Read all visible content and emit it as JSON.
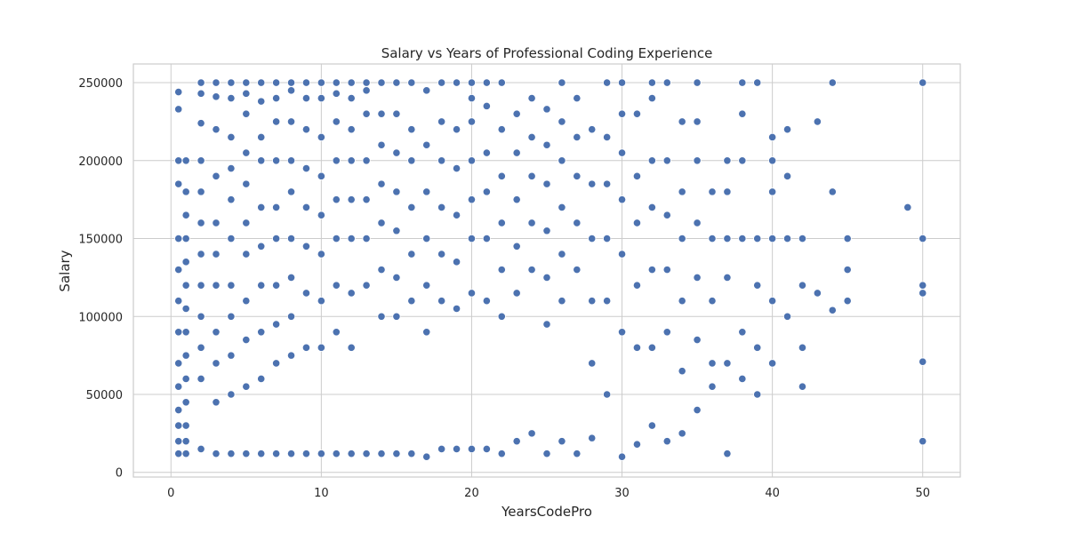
{
  "chart_data": {
    "type": "scatter",
    "title": "Salary vs Years of Professional Coding Experience",
    "xlabel": "YearsCodePro",
    "ylabel": "Salary",
    "xlim": [
      -2.5,
      52.5
    ],
    "ylim": [
      -3000,
      262000
    ],
    "x_ticks": [
      0,
      10,
      20,
      30,
      40,
      50
    ],
    "y_ticks": [
      0,
      50000,
      100000,
      150000,
      200000,
      250000
    ],
    "x_tick_labels": [
      "0",
      "10",
      "20",
      "30",
      "40",
      "50"
    ],
    "y_tick_labels": [
      "0",
      "50000",
      "100000",
      "150000",
      "200000",
      "250000"
    ],
    "grid": true,
    "legend": "none",
    "marker_color": "#4c72b0",
    "series": [
      {
        "x_values": [
          0.5,
          0.5,
          0.5,
          0.5,
          0.5,
          0.5,
          0.5,
          0.5,
          0.5,
          0.5,
          0.5,
          0.5,
          0.5,
          0.5,
          1,
          1,
          1,
          1,
          1,
          1,
          1,
          1,
          1,
          1,
          1,
          1,
          1,
          1,
          2,
          2,
          2,
          2,
          2,
          2,
          2,
          2,
          2,
          2,
          2,
          2,
          3,
          3,
          3,
          3,
          3,
          3,
          3,
          3,
          3,
          3,
          3,
          4,
          4,
          4,
          4,
          4,
          4,
          4,
          4,
          4,
          4,
          4,
          5,
          5,
          5,
          5,
          5,
          5,
          5,
          5,
          5,
          5,
          5,
          6,
          6,
          6,
          6,
          6,
          6,
          6,
          6,
          6,
          6,
          7,
          7,
          7,
          7,
          7,
          7,
          7,
          7,
          7,
          7,
          8,
          8,
          8,
          8,
          8,
          8,
          8,
          8,
          8,
          8,
          9,
          9,
          9,
          9,
          9,
          9,
          9,
          9,
          9,
          10,
          10,
          10,
          10,
          10,
          10,
          10,
          10,
          10,
          11,
          11,
          11,
          11,
          11,
          11,
          11,
          11,
          11,
          12,
          12,
          12,
          12,
          12,
          12,
          12,
          12,
          12,
          13,
          13,
          13,
          13,
          13,
          13,
          13,
          13,
          14,
          14,
          14,
          14,
          14,
          14,
          14,
          14,
          15,
          15,
          15,
          15,
          15,
          15,
          15,
          15,
          16,
          16,
          16,
          16,
          16,
          16,
          16,
          17,
          17,
          17,
          17,
          17,
          17,
          17,
          18,
          18,
          18,
          18,
          18,
          18,
          18,
          19,
          19,
          19,
          19,
          19,
          19,
          19,
          20,
          20,
          20,
          20,
          20,
          20,
          20,
          20,
          21,
          21,
          21,
          21,
          21,
          21,
          21,
          22,
          22,
          22,
          22,
          22,
          22,
          22,
          23,
          23,
          23,
          23,
          23,
          23,
          24,
          24,
          24,
          24,
          24,
          24,
          25,
          25,
          25,
          25,
          25,
          25,
          25,
          26,
          26,
          26,
          26,
          26,
          26,
          26,
          27,
          27,
          27,
          27,
          27,
          27,
          28,
          28,
          28,
          28,
          28,
          28,
          29,
          29,
          29,
          29,
          29,
          29,
          30,
          30,
          30,
          30,
          30,
          30,
          30,
          31,
          31,
          31,
          31,
          31,
          31,
          32,
          32,
          32,
          32,
          32,
          32,
          32,
          33,
          33,
          33,
          33,
          33,
          33,
          34,
          34,
          34,
          34,
          34,
          34,
          35,
          35,
          35,
          35,
          35,
          35,
          35,
          36,
          36,
          36,
          36,
          36,
          37,
          37,
          37,
          37,
          37,
          37,
          38,
          38,
          38,
          38,
          38,
          38,
          39,
          39,
          39,
          39,
          39,
          40,
          40,
          40,
          40,
          40,
          40,
          41,
          41,
          41,
          41,
          42,
          42,
          42,
          42,
          43,
          43,
          44,
          44,
          44,
          45,
          45,
          45,
          49,
          50,
          50,
          50,
          50,
          50,
          50
        ],
        "y_values": [
          244000,
          233000,
          200000,
          185000,
          150000,
          130000,
          110000,
          90000,
          70000,
          55000,
          40000,
          30000,
          20000,
          12000,
          200000,
          180000,
          165000,
          150000,
          135000,
          120000,
          105000,
          90000,
          75000,
          60000,
          45000,
          30000,
          20000,
          12000,
          250000,
          243000,
          224000,
          200000,
          180000,
          160000,
          140000,
          120000,
          100000,
          80000,
          60000,
          15000,
          250000,
          241000,
          220000,
          190000,
          160000,
          140000,
          120000,
          90000,
          70000,
          45000,
          12000,
          250000,
          240000,
          215000,
          195000,
          175000,
          150000,
          120000,
          100000,
          75000,
          50000,
          12000,
          250000,
          243000,
          230000,
          205000,
          185000,
          160000,
          140000,
          110000,
          85000,
          55000,
          12000,
          250000,
          238000,
          215000,
          200000,
          170000,
          145000,
          120000,
          90000,
          60000,
          12000,
          250000,
          240000,
          225000,
          200000,
          170000,
          150000,
          120000,
          95000,
          70000,
          12000,
          250000,
          245000,
          225000,
          200000,
          180000,
          150000,
          125000,
          100000,
          75000,
          12000,
          250000,
          240000,
          220000,
          195000,
          170000,
          145000,
          115000,
          80000,
          12000,
          250000,
          240000,
          215000,
          190000,
          165000,
          140000,
          110000,
          80000,
          12000,
          250000,
          243000,
          225000,
          200000,
          175000,
          150000,
          120000,
          90000,
          12000,
          250000,
          240000,
          220000,
          200000,
          175000,
          150000,
          115000,
          80000,
          12000,
          250000,
          245000,
          230000,
          200000,
          175000,
          150000,
          120000,
          12000,
          250000,
          230000,
          210000,
          185000,
          160000,
          130000,
          100000,
          12000,
          250000,
          230000,
          205000,
          180000,
          155000,
          125000,
          100000,
          12000,
          250000,
          220000,
          200000,
          170000,
          140000,
          110000,
          12000,
          245000,
          210000,
          180000,
          150000,
          120000,
          90000,
          10000,
          250000,
          225000,
          200000,
          170000,
          140000,
          110000,
          15000,
          250000,
          220000,
          195000,
          165000,
          135000,
          105000,
          15000,
          250000,
          240000,
          225000,
          200000,
          175000,
          150000,
          115000,
          15000,
          250000,
          235000,
          205000,
          180000,
          150000,
          110000,
          15000,
          250000,
          220000,
          190000,
          160000,
          130000,
          100000,
          12000,
          230000,
          205000,
          175000,
          145000,
          115000,
          20000,
          240000,
          215000,
          190000,
          160000,
          130000,
          25000,
          233000,
          210000,
          185000,
          155000,
          125000,
          95000,
          12000,
          250000,
          225000,
          200000,
          170000,
          140000,
          110000,
          20000,
          240000,
          215000,
          190000,
          160000,
          130000,
          12000,
          220000,
          185000,
          150000,
          110000,
          70000,
          22000,
          250000,
          215000,
          185000,
          150000,
          110000,
          50000,
          250000,
          230000,
          205000,
          175000,
          140000,
          90000,
          10000,
          230000,
          190000,
          160000,
          120000,
          80000,
          18000,
          250000,
          240000,
          200000,
          170000,
          130000,
          80000,
          30000,
          250000,
          200000,
          165000,
          130000,
          90000,
          20000,
          225000,
          180000,
          150000,
          110000,
          65000,
          25000,
          250000,
          225000,
          200000,
          160000,
          125000,
          85000,
          40000,
          180000,
          150000,
          110000,
          70000,
          55000,
          200000,
          180000,
          150000,
          125000,
          70000,
          12000,
          250000,
          230000,
          200000,
          150000,
          90000,
          60000,
          250000,
          150000,
          120000,
          80000,
          50000,
          215000,
          200000,
          180000,
          150000,
          110000,
          70000,
          220000,
          190000,
          150000,
          100000,
          150000,
          120000,
          80000,
          55000,
          225000,
          115000,
          250000,
          180000,
          104000,
          150000,
          130000,
          110000,
          170000,
          250000,
          150000,
          120000,
          115000,
          71000,
          20000
        ]
      }
    ]
  }
}
